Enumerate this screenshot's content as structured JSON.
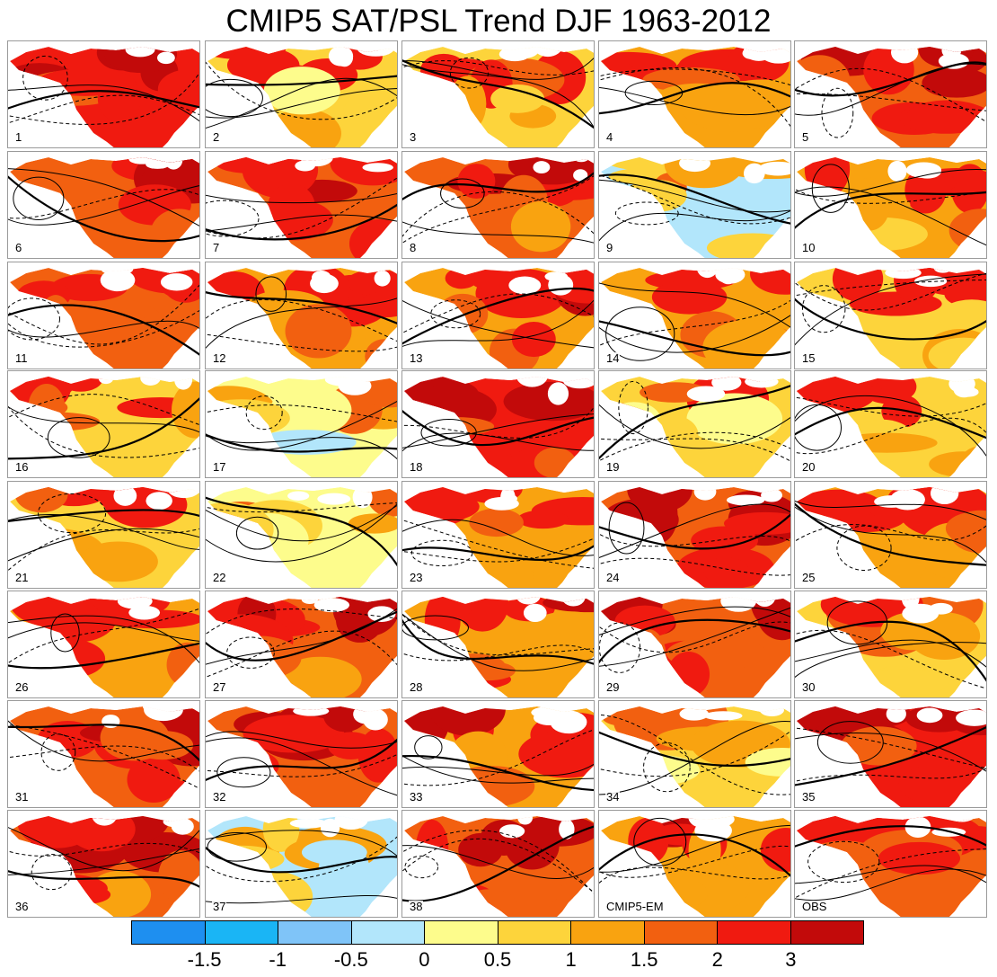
{
  "title": "CMIP5 SAT/PSL Trend DJF 1963-2012",
  "panels": [
    "1",
    "2",
    "3",
    "4",
    "5",
    "6",
    "7",
    "8",
    "9",
    "10",
    "11",
    "12",
    "13",
    "14",
    "15",
    "16",
    "17",
    "18",
    "19",
    "20",
    "21",
    "22",
    "23",
    "24",
    "25",
    "26",
    "27",
    "28",
    "29",
    "30",
    "31",
    "32",
    "33",
    "34",
    "35",
    "36",
    "37",
    "38",
    "CMIP5-EM",
    "OBS"
  ],
  "panel_warmth": [
    2.6,
    1.2,
    1.4,
    1.6,
    2.4,
    2.3,
    2.5,
    2.2,
    0.5,
    1.8,
    2.3,
    1.9,
    1.9,
    2.0,
    1.4,
    1.4,
    0.6,
    2.6,
    1.1,
    1.4,
    1.3,
    0.9,
    1.6,
    2.5,
    1.6,
    1.9,
    2.3,
    2.0,
    2.4,
    1.3,
    2.2,
    2.3,
    1.9,
    1.1,
    2.6,
    2.2,
    0.4,
    2.3,
    1.9,
    2.4
  ],
  "colorbar": {
    "colors": [
      "#1e8ff0",
      "#1ab5f5",
      "#7fc4f8",
      "#b2e6fb",
      "#fdfc8c",
      "#fdd43b",
      "#f9a310",
      "#f26010",
      "#f01a10",
      "#c20a0a"
    ],
    "labels": [
      "-1.5",
      "-1",
      "-0.5",
      "0",
      "0.5",
      "1",
      "1.5",
      "2",
      "3"
    ]
  }
}
